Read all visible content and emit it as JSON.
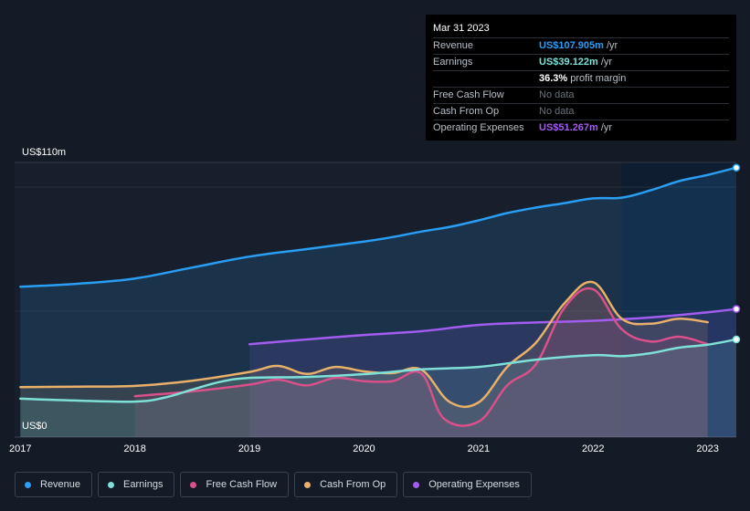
{
  "tooltip": {
    "date": "Mar 31 2023",
    "rows": [
      {
        "label": "Revenue",
        "value": "US$107.905m",
        "unit": "/yr",
        "color": "#2a9df4"
      },
      {
        "label": "Earnings",
        "value": "US$39.122m",
        "unit": "/yr",
        "color": "#7fe0d8"
      },
      {
        "label": "",
        "value": "36.3%",
        "unit": "profit margin",
        "color": "#ffffff"
      },
      {
        "label": "Free Cash Flow",
        "value": "No data",
        "unit": "",
        "color": "#6b717a"
      },
      {
        "label": "Cash From Op",
        "value": "No data",
        "unit": "",
        "color": "#6b717a"
      },
      {
        "label": "Operating Expenses",
        "value": "US$51.267m",
        "unit": "/yr",
        "color": "#a35cf0"
      }
    ]
  },
  "legend": [
    {
      "label": "Revenue",
      "color": "#2a9df4"
    },
    {
      "label": "Earnings",
      "color": "#7fe0d8"
    },
    {
      "label": "Free Cash Flow",
      "color": "#d9508a"
    },
    {
      "label": "Cash From Op",
      "color": "#e8b06a"
    },
    {
      "label": "Operating Expenses",
      "color": "#a35cf0"
    }
  ],
  "chart_data": {
    "type": "area",
    "ylabel_top": "US$110m",
    "ylabel_bottom": "US$0",
    "ylim": [
      0,
      110
    ],
    "xlim": [
      2016.95,
      2023.25
    ],
    "xticks": [
      2017,
      2018,
      2019,
      2020,
      2021,
      2022,
      2023
    ],
    "forecast_start": 2022.25,
    "series": [
      {
        "name": "Revenue",
        "color": "#2a9df4",
        "x": [
          2017.0,
          2017.5,
          2018.0,
          2018.5,
          2019.0,
          2019.5,
          2020.0,
          2020.25,
          2020.5,
          2020.75,
          2021.0,
          2021.25,
          2021.5,
          2021.75,
          2022.0,
          2022.25,
          2022.5,
          2022.75,
          2023.0,
          2023.25
        ],
        "y": [
          60.2,
          61.4,
          63.5,
          67.9,
          72.3,
          75.3,
          78.3,
          80.1,
          82.3,
          84.2,
          86.8,
          89.7,
          91.9,
          93.7,
          95.6,
          95.9,
          98.8,
          102.5,
          105.0,
          107.9
        ]
      },
      {
        "name": "Earnings",
        "color": "#7fe0d8",
        "x": [
          2017.0,
          2017.5,
          2018.0,
          2018.25,
          2018.5,
          2018.75,
          2019.0,
          2019.5,
          2020.0,
          2020.5,
          2021.0,
          2021.5,
          2022.0,
          2022.25,
          2022.5,
          2022.75,
          2023.0,
          2023.25
        ],
        "y": [
          15.4,
          14.6,
          14.2,
          15.7,
          19.0,
          22.2,
          23.7,
          24.1,
          25.2,
          27.1,
          28.1,
          31.0,
          32.8,
          32.4,
          33.6,
          35.8,
          37.0,
          39.1
        ]
      },
      {
        "name": "Free Cash Flow",
        "color": "#d9508a",
        "x": [
          2018.0,
          2018.5,
          2019.0,
          2019.25,
          2019.5,
          2019.75,
          2020.0,
          2020.25,
          2020.5,
          2020.7,
          2021.0,
          2021.25,
          2021.5,
          2021.75,
          2022.0,
          2022.25,
          2022.5,
          2022.75,
          2023.0
        ],
        "y": [
          16.4,
          18.3,
          21.0,
          23.0,
          20.7,
          23.7,
          22.4,
          22.4,
          25.5,
          7.3,
          6.2,
          20.7,
          29.2,
          51.8,
          59.2,
          43.2,
          38.3,
          40.2,
          37.2
        ]
      },
      {
        "name": "Cash From Op",
        "color": "#e8b06a",
        "x": [
          2017.0,
          2017.5,
          2018.0,
          2018.5,
          2019.0,
          2019.25,
          2019.5,
          2019.75,
          2020.0,
          2020.25,
          2020.5,
          2020.75,
          2021.0,
          2021.25,
          2021.5,
          2021.75,
          2022.0,
          2022.25,
          2022.5,
          2022.75,
          2023.0
        ],
        "y": [
          20.0,
          20.2,
          20.5,
          22.6,
          26.1,
          28.5,
          25.3,
          28.1,
          26.3,
          25.6,
          27.0,
          14.0,
          13.9,
          28.1,
          37.8,
          53.6,
          62.0,
          47.4,
          45.4,
          47.4,
          46.0
        ]
      },
      {
        "name": "Operating Expenses",
        "color": "#a35cf0",
        "x": [
          2019.0,
          2019.5,
          2020.0,
          2020.5,
          2021.0,
          2021.5,
          2022.0,
          2022.5,
          2023.0,
          2023.25
        ],
        "y": [
          37.2,
          39.1,
          40.9,
          42.4,
          44.9,
          45.9,
          46.6,
          47.9,
          50.0,
          51.3
        ]
      }
    ]
  }
}
